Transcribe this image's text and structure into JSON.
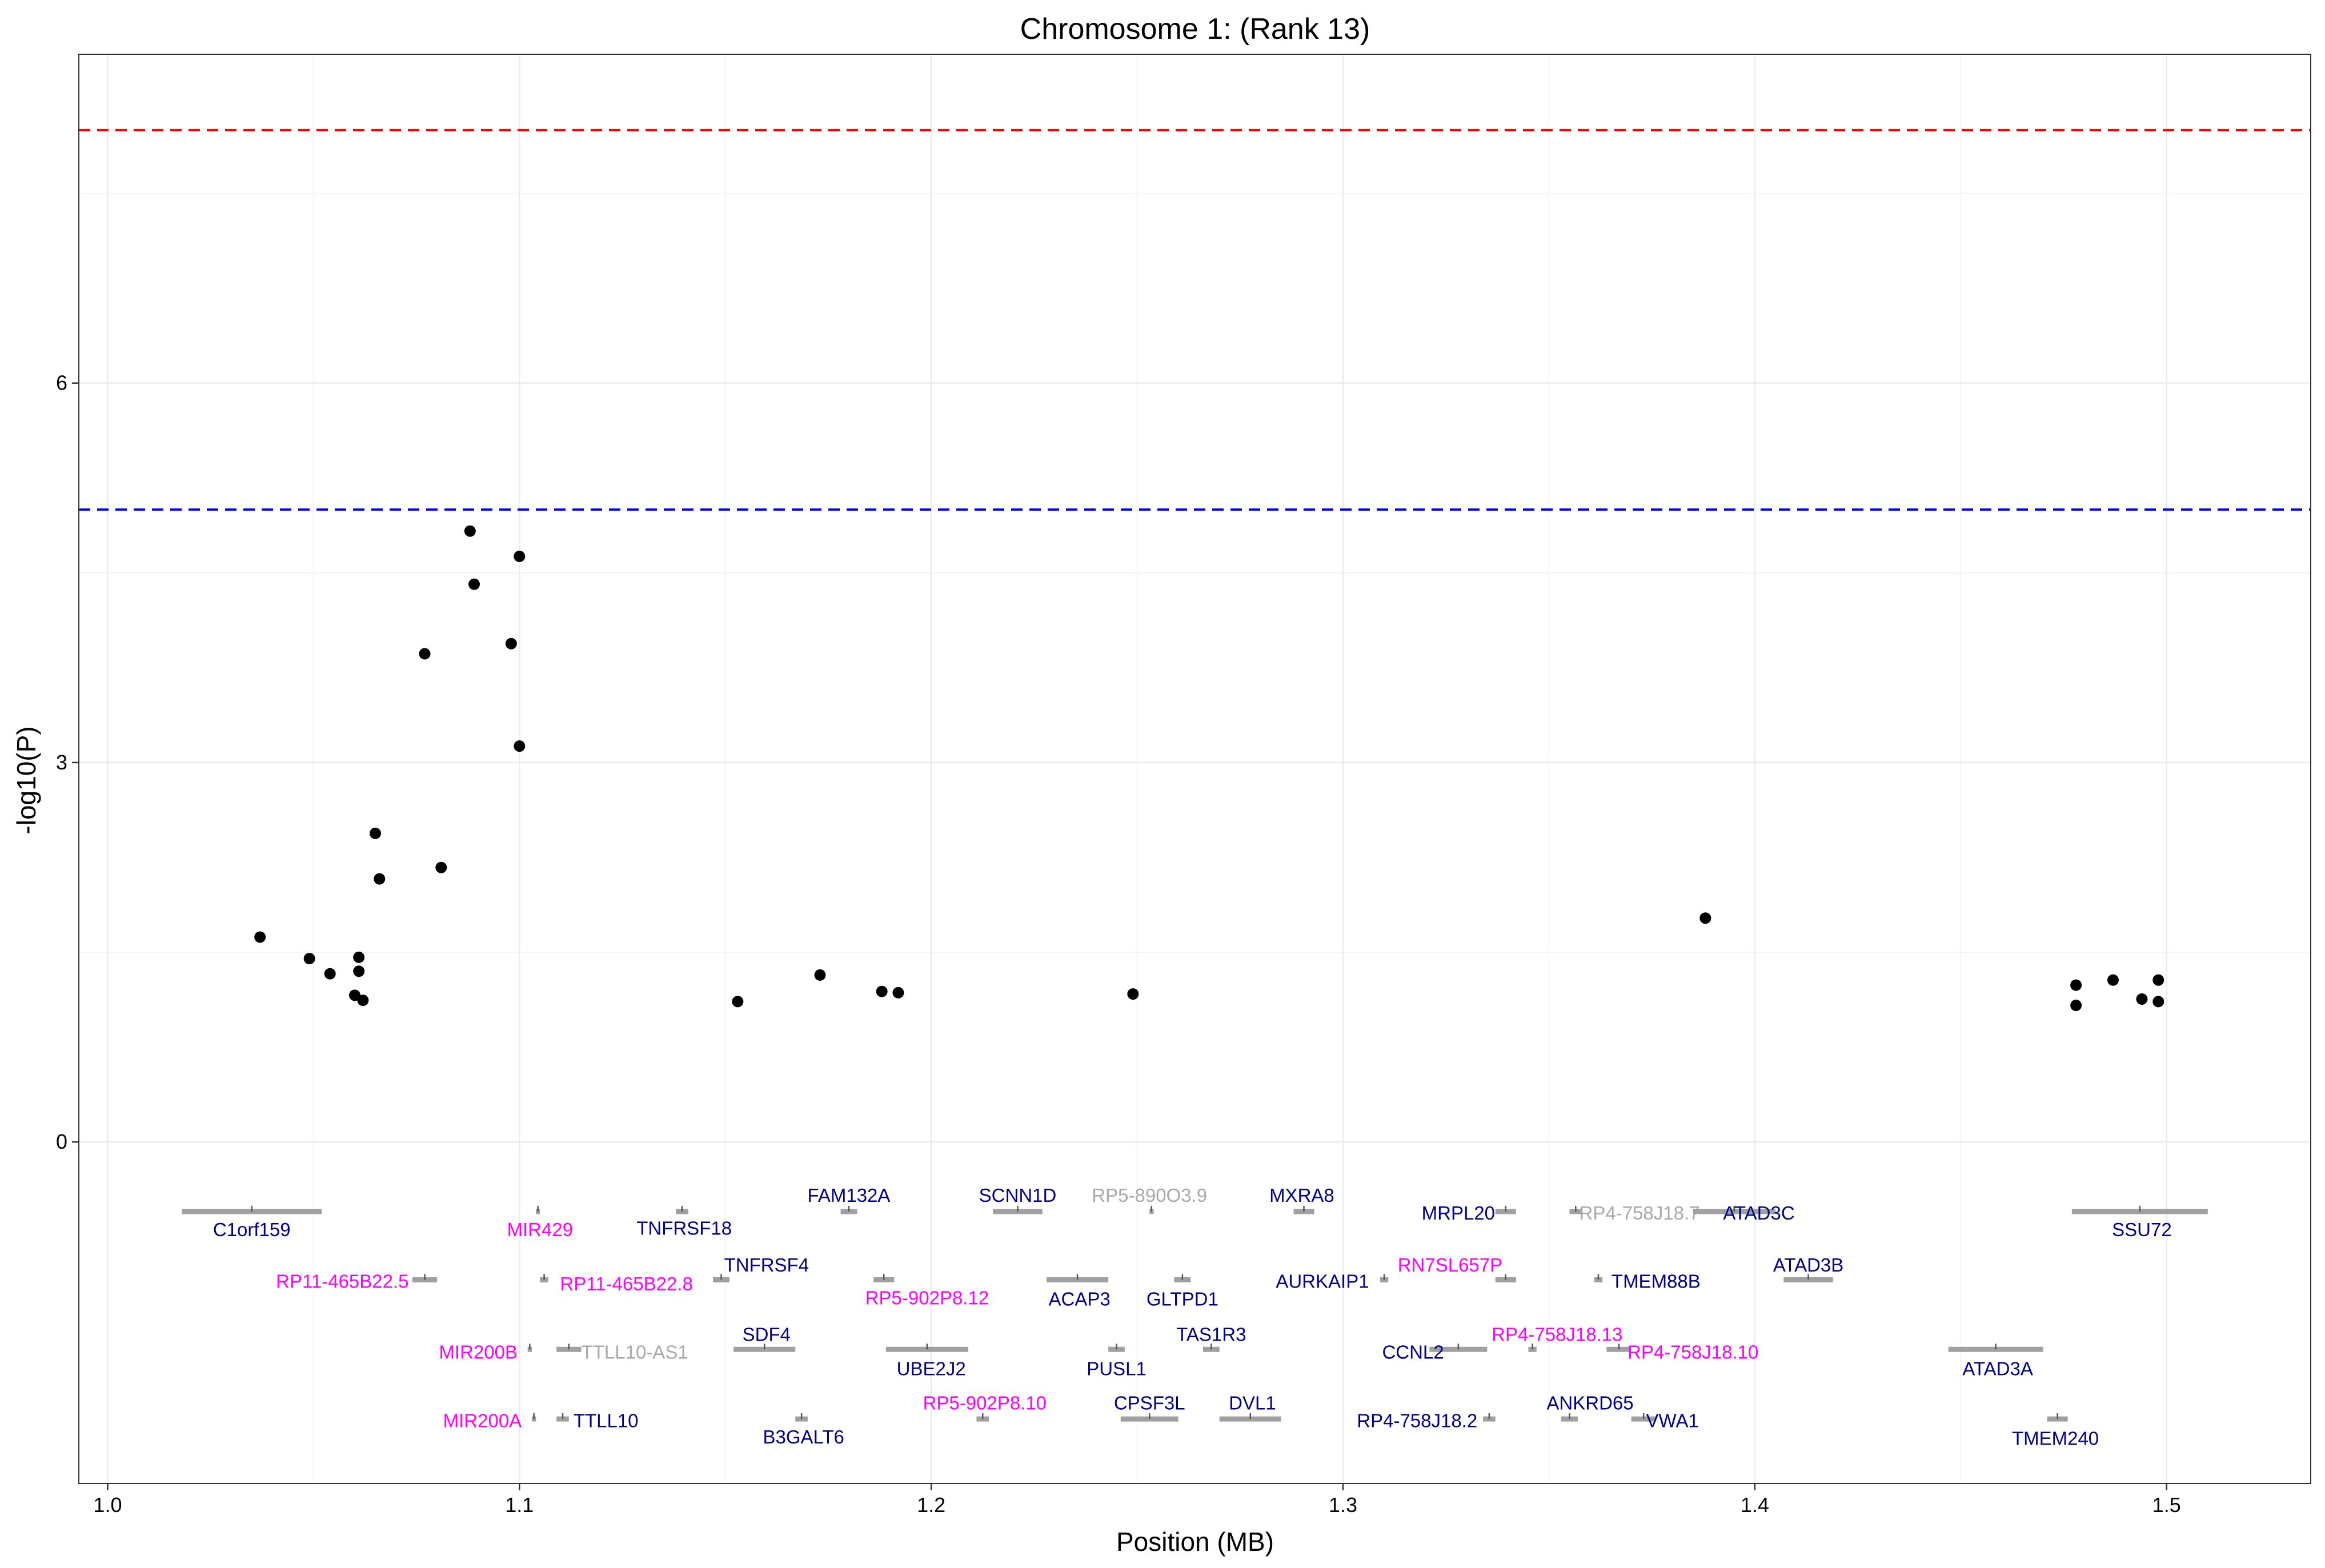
{
  "chart_data": {
    "type": "scatter",
    "title": "Chromosome 1: (Rank 13)",
    "xlabel": "Position (MB)",
    "ylabel": "-log10(P)",
    "xlim": [
      0.993,
      1.535
    ],
    "ylim": [
      -2.7,
      8.6
    ],
    "xticks": [
      {
        "value": 1.0,
        "label": "1.0"
      },
      {
        "value": 1.1,
        "label": "1.1"
      },
      {
        "value": 1.2,
        "label": "1.2"
      },
      {
        "value": 1.3,
        "label": "1.3"
      },
      {
        "value": 1.4,
        "label": "1.4"
      },
      {
        "value": 1.5,
        "label": "1.5"
      }
    ],
    "yticks": [
      {
        "value": 0,
        "label": "0"
      },
      {
        "value": 3,
        "label": "3"
      },
      {
        "value": 6,
        "label": "6"
      }
    ],
    "xminor": [
      1.05,
      1.15,
      1.25,
      1.35,
      1.45
    ],
    "yminor": [
      1.5,
      4.5,
      7.5
    ],
    "grid": true,
    "threshold_lines": [
      {
        "y": 8.0,
        "color": "#ff0000",
        "style": "dashed"
      },
      {
        "y": 5.0,
        "color": "#0000ff",
        "style": "dashed"
      }
    ],
    "points": [
      {
        "x": 1.037,
        "y": 1.62
      },
      {
        "x": 1.049,
        "y": 1.45
      },
      {
        "x": 1.054,
        "y": 1.33
      },
      {
        "x": 1.061,
        "y": 1.46
      },
      {
        "x": 1.061,
        "y": 1.35
      },
      {
        "x": 1.06,
        "y": 1.16
      },
      {
        "x": 1.062,
        "y": 1.12
      },
      {
        "x": 1.065,
        "y": 2.44
      },
      {
        "x": 1.066,
        "y": 2.08
      },
      {
        "x": 1.077,
        "y": 3.86
      },
      {
        "x": 1.081,
        "y": 2.17
      },
      {
        "x": 1.088,
        "y": 4.83
      },
      {
        "x": 1.089,
        "y": 4.41
      },
      {
        "x": 1.098,
        "y": 3.94
      },
      {
        "x": 1.1,
        "y": 4.63
      },
      {
        "x": 1.1,
        "y": 3.13
      },
      {
        "x": 1.153,
        "y": 1.11
      },
      {
        "x": 1.173,
        "y": 1.32
      },
      {
        "x": 1.188,
        "y": 1.19
      },
      {
        "x": 1.192,
        "y": 1.18
      },
      {
        "x": 1.249,
        "y": 1.17
      },
      {
        "x": 1.388,
        "y": 1.77
      },
      {
        "x": 1.478,
        "y": 1.24
      },
      {
        "x": 1.478,
        "y": 1.08
      },
      {
        "x": 1.487,
        "y": 1.28
      },
      {
        "x": 1.494,
        "y": 1.13
      },
      {
        "x": 1.498,
        "y": 1.11
      },
      {
        "x": 1.498,
        "y": 1.28
      }
    ],
    "gene_colors": {
      "coding": "#00008b",
      "noncoding": "#ff00ff",
      "other": "#a9a9a9",
      "segment": "#a0a0a0"
    },
    "genes": [
      {
        "name": "C1orf159",
        "start": 1.018,
        "end": 1.052,
        "row": 1,
        "label_x": 1.035,
        "label_y": -0.69,
        "class": "coding"
      },
      {
        "name": "MIR429",
        "start": 1.104,
        "end": 1.105,
        "row": 1,
        "label_x": 1.105,
        "label_y": -0.69,
        "class": "noncoding"
      },
      {
        "name": "TNFRSF18",
        "start": 1.138,
        "end": 1.141,
        "row": 1,
        "label_x": 1.14,
        "label_y": -0.68,
        "class": "coding"
      },
      {
        "name": "FAM132A",
        "start": 1.178,
        "end": 1.182,
        "row": 1,
        "label_x": 1.18,
        "label_y": -0.42,
        "class": "coding"
      },
      {
        "name": "SCNN1D",
        "start": 1.215,
        "end": 1.227,
        "row": 1,
        "label_x": 1.221,
        "label_y": -0.42,
        "class": "coding"
      },
      {
        "name": "RP5-890O3.9",
        "start": 1.253,
        "end": 1.254,
        "row": 1,
        "label_x": 1.253,
        "label_y": -0.42,
        "class": "other"
      },
      {
        "name": "MXRA8",
        "start": 1.288,
        "end": 1.293,
        "row": 1,
        "label_x": 1.29,
        "label_y": -0.42,
        "class": "coding"
      },
      {
        "name": "MRPL20",
        "start": 1.337,
        "end": 1.342,
        "row": 1,
        "label_x": 1.328,
        "label_y": -0.56,
        "class": "coding"
      },
      {
        "name": "RP4-758J18.7",
        "start": 1.355,
        "end": 1.358,
        "row": 1,
        "label_x": 1.372,
        "label_y": -0.56,
        "class": "other"
      },
      {
        "name": "ATAD3C",
        "start": 1.385,
        "end": 1.405,
        "row": 1,
        "label_x": 1.401,
        "label_y": -0.56,
        "class": "coding"
      },
      {
        "name": "SSU72",
        "start": 1.477,
        "end": 1.51,
        "row": 1,
        "label_x": 1.494,
        "label_y": -0.69,
        "class": "coding"
      },
      {
        "name": "RP11-465B22.5",
        "start": 1.074,
        "end": 1.08,
        "row": 2,
        "label_x": 1.057,
        "label_y": -1.1,
        "class": "noncoding"
      },
      {
        "name": "RP11-465B22.8",
        "start": 1.105,
        "end": 1.107,
        "row": 2,
        "label_x": 1.126,
        "label_y": -1.12,
        "class": "noncoding"
      },
      {
        "name": "TNFRSF4",
        "start": 1.147,
        "end": 1.151,
        "row": 2,
        "label_x": 1.16,
        "label_y": -0.97,
        "class": "coding"
      },
      {
        "name": "RP5-902P8.12",
        "start": 1.186,
        "end": 1.191,
        "row": 2,
        "label_x": 1.199,
        "label_y": -1.23,
        "class": "noncoding"
      },
      {
        "name": "ACAP3",
        "start": 1.228,
        "end": 1.243,
        "row": 2,
        "label_x": 1.236,
        "label_y": -1.24,
        "class": "coding"
      },
      {
        "name": "GLTPD1",
        "start": 1.259,
        "end": 1.263,
        "row": 2,
        "label_x": 1.261,
        "label_y": -1.24,
        "class": "coding"
      },
      {
        "name": "AURKAIP1",
        "start": 1.309,
        "end": 1.311,
        "row": 2,
        "label_x": 1.295,
        "label_y": -1.1,
        "class": "coding"
      },
      {
        "name": "RN7SL657P",
        "start": 1.337,
        "end": 1.342,
        "row": 2,
        "label_x": 1.326,
        "label_y": -0.97,
        "class": "noncoding"
      },
      {
        "name": "TMEM88B",
        "start": 1.361,
        "end": 1.363,
        "row": 2,
        "label_x": 1.376,
        "label_y": -1.1,
        "class": "coding"
      },
      {
        "name": "ATAD3B",
        "start": 1.407,
        "end": 1.419,
        "row": 2,
        "label_x": 1.413,
        "label_y": -0.97,
        "class": "coding"
      },
      {
        "name": "MIR200B",
        "start": 1.102,
        "end": 1.103,
        "row": 3,
        "label_x": 1.09,
        "label_y": -1.66,
        "class": "noncoding"
      },
      {
        "name": "TTLL10-AS1",
        "start": 1.109,
        "end": 1.115,
        "row": 3,
        "label_x": 1.128,
        "label_y": -1.66,
        "class": "other"
      },
      {
        "name": "SDF4",
        "start": 1.152,
        "end": 1.167,
        "row": 3,
        "label_x": 1.16,
        "label_y": -1.52,
        "class": "coding"
      },
      {
        "name": "UBE2J2",
        "start": 1.189,
        "end": 1.209,
        "row": 3,
        "label_x": 1.2,
        "label_y": -1.79,
        "class": "coding"
      },
      {
        "name": "PUSL1",
        "start": 1.243,
        "end": 1.247,
        "row": 3,
        "label_x": 1.245,
        "label_y": -1.79,
        "class": "coding"
      },
      {
        "name": "TAS1R3",
        "start": 1.266,
        "end": 1.27,
        "row": 3,
        "label_x": 1.268,
        "label_y": -1.52,
        "class": "coding"
      },
      {
        "name": "CCNL2",
        "start": 1.321,
        "end": 1.335,
        "row": 3,
        "label_x": 1.317,
        "label_y": -1.66,
        "class": "coding"
      },
      {
        "name": "RP4-758J18.13",
        "start": 1.345,
        "end": 1.347,
        "row": 3,
        "label_x": 1.352,
        "label_y": -1.52,
        "class": "noncoding"
      },
      {
        "name": "RP4-758J18.10",
        "start": 1.364,
        "end": 1.37,
        "row": 3,
        "label_x": 1.385,
        "label_y": -1.66,
        "class": "noncoding"
      },
      {
        "name": "ATAD3A",
        "start": 1.447,
        "end": 1.47,
        "row": 3,
        "label_x": 1.459,
        "label_y": -1.79,
        "class": "coding"
      },
      {
        "name": "MIR200A",
        "start": 1.103,
        "end": 1.104,
        "row": 4,
        "label_x": 1.091,
        "label_y": -2.2,
        "class": "noncoding"
      },
      {
        "name": "TTLL10",
        "start": 1.109,
        "end": 1.112,
        "row": 4,
        "label_x": 1.121,
        "label_y": -2.2,
        "class": "coding"
      },
      {
        "name": "B3GALT6",
        "start": 1.167,
        "end": 1.17,
        "row": 4,
        "label_x": 1.169,
        "label_y": -2.33,
        "class": "coding"
      },
      {
        "name": "RP5-902P8.10",
        "start": 1.211,
        "end": 1.214,
        "row": 4,
        "label_x": 1.213,
        "label_y": -2.06,
        "class": "noncoding"
      },
      {
        "name": "CPSF3L",
        "start": 1.246,
        "end": 1.26,
        "row": 4,
        "label_x": 1.253,
        "label_y": -2.06,
        "class": "coding"
      },
      {
        "name": "DVL1",
        "start": 1.27,
        "end": 1.285,
        "row": 4,
        "label_x": 1.278,
        "label_y": -2.06,
        "class": "coding"
      },
      {
        "name": "RP4-758J18.2",
        "start": 1.334,
        "end": 1.337,
        "row": 4,
        "label_x": 1.318,
        "label_y": -2.2,
        "class": "coding"
      },
      {
        "name": "ANKRD65",
        "start": 1.353,
        "end": 1.357,
        "row": 4,
        "label_x": 1.36,
        "label_y": -2.06,
        "class": "coding"
      },
      {
        "name": "VWA1",
        "start": 1.37,
        "end": 1.376,
        "row": 4,
        "label_x": 1.38,
        "label_y": -2.2,
        "class": "coding"
      },
      {
        "name": "TMEM240",
        "start": 1.471,
        "end": 1.476,
        "row": 4,
        "label_x": 1.473,
        "label_y": -2.34,
        "class": "coding"
      }
    ]
  }
}
